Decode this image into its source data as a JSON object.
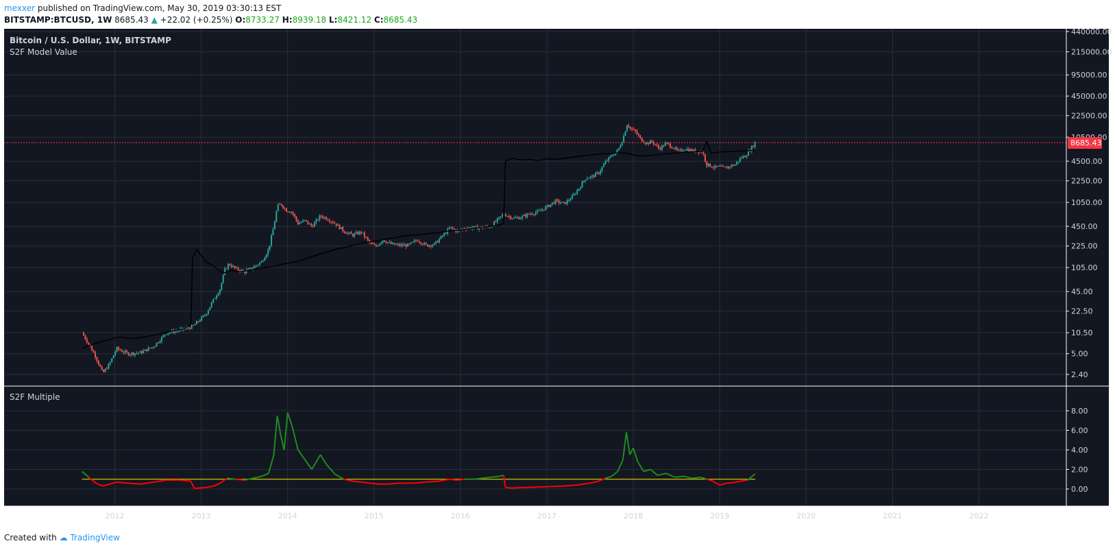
{
  "header": {
    "author": "mexxer",
    "published_text": "published on TradingView.com, May 30, 2019 03:30:13 EST",
    "symbol": "BITSTAMP:BTCUSD, 1W",
    "last": "8685.43",
    "change": "+22.02 (+0.25%)",
    "o_label": "O:",
    "o_value": "8733.27",
    "h_label": "H:",
    "h_value": "8939.18",
    "l_label": "L:",
    "l_value": "8421.12",
    "c_label": "C:",
    "c_value": "8685.43"
  },
  "footer": {
    "created_with": "Created with",
    "brand": "TradingView"
  },
  "colors": {
    "background": "#131722",
    "up": "#26a69a",
    "down": "#ef5350",
    "s2f_line": "#000000",
    "multiple_above": "#1e8c1e",
    "multiple_below": "#ff0000",
    "ref_line": "#d4c400",
    "price_line": "#f23645"
  },
  "chart_data": [
    {
      "type": "candlestick",
      "title": "Bitcoin / U.S. Dollar, 1W, BITSTAMP",
      "indicator_label": "S2F Model Value",
      "y_scale": "log",
      "y_ticks": [
        "440000.00",
        "215000.00",
        "95000.00",
        "45000.00",
        "22500.00",
        "10500.00",
        "4500.00",
        "2250.00",
        "1050.00",
        "450.00",
        "225.00",
        "105.00",
        "45.00",
        "22.50",
        "10.50",
        "5.00",
        "2.40"
      ],
      "x_ticks": [
        "2012",
        "2013",
        "2014",
        "2015",
        "2016",
        "2017",
        "2018",
        "2019",
        "2020",
        "2021",
        "2022"
      ],
      "current_price": "8685.43",
      "series": [
        {
          "name": "BTCUSD",
          "type": "candlestick",
          "x": [
            2011.62,
            2011.7,
            2011.78,
            2011.86,
            2011.94,
            2012.02,
            2012.15,
            2012.3,
            2012.45,
            2012.6,
            2012.75,
            2012.9,
            2013.05,
            2013.15,
            2013.22,
            2013.27,
            2013.32,
            2013.4,
            2013.5,
            2013.6,
            2013.7,
            2013.78,
            2013.84,
            2013.88,
            2013.92,
            2013.98,
            2014.05,
            2014.12,
            2014.2,
            2014.28,
            2014.38,
            2014.45,
            2014.55,
            2014.65,
            2014.75,
            2014.85,
            2014.95,
            2015.02,
            2015.1,
            2015.2,
            2015.3,
            2015.4,
            2015.5,
            2015.6,
            2015.7,
            2015.8,
            2015.88,
            2015.96,
            2016.05,
            2016.15,
            2016.25,
            2016.35,
            2016.45,
            2016.5,
            2016.55,
            2016.62,
            2016.7,
            2016.8,
            2016.9,
            2017.0,
            2017.1,
            2017.2,
            2017.3,
            2017.38,
            2017.45,
            2017.52,
            2017.6,
            2017.68,
            2017.75,
            2017.82,
            2017.88,
            2017.93,
            2017.97,
            2018.02,
            2018.08,
            2018.15,
            2018.22,
            2018.3,
            2018.38,
            2018.45,
            2018.52,
            2018.6,
            2018.68,
            2018.75,
            2018.8,
            2018.85,
            2018.9,
            2018.95,
            2019.0,
            2019.06,
            2019.12,
            2019.18,
            2019.24,
            2019.3,
            2019.36,
            2019.41
          ],
          "close": [
            10.5,
            7,
            4.5,
            2.5,
            3.5,
            6,
            5,
            5.2,
            6.5,
            10.5,
            11.5,
            13,
            20,
            35,
            50,
            95,
            120,
            100,
            90,
            105,
            130,
            200,
            450,
            900,
            1000,
            800,
            750,
            500,
            550,
            450,
            650,
            600,
            500,
            380,
            330,
            370,
            250,
            220,
            280,
            240,
            230,
            230,
            280,
            230,
            240,
            330,
            430,
            380,
            420,
            430,
            430,
            450,
            600,
            700,
            650,
            600,
            620,
            700,
            750,
            900,
            1100,
            1000,
            1300,
            1800,
            2500,
            2600,
            3000,
            4400,
            5500,
            6500,
            10000,
            17000,
            14000,
            13000,
            10000,
            8500,
            9000,
            7000,
            8500,
            7500,
            6300,
            7000,
            6500,
            6400,
            6300,
            4000,
            3800,
            3600,
            3700,
            3500,
            3800,
            4000,
            5000,
            5500,
            7000,
            8685.43
          ]
        },
        {
          "name": "S2F Model Value",
          "type": "line",
          "x": [
            2011.62,
            2011.75,
            2011.9,
            2012.05,
            2012.2,
            2012.35,
            2012.5,
            2012.65,
            2012.8,
            2012.88,
            2012.9,
            2012.95,
            2013.05,
            2013.15,
            2013.25,
            2013.35,
            2013.45,
            2013.55,
            2013.65,
            2013.75,
            2013.85,
            2013.95,
            2014.05,
            2014.15,
            2014.25,
            2014.35,
            2014.45,
            2014.55,
            2014.65,
            2014.75,
            2014.85,
            2014.95,
            2015.05,
            2015.15,
            2015.25,
            2015.35,
            2015.45,
            2015.55,
            2015.65,
            2015.75,
            2015.85,
            2015.95,
            2016.05,
            2016.15,
            2016.25,
            2016.35,
            2016.45,
            2016.5,
            2016.52,
            2016.6,
            2016.7,
            2016.8,
            2016.9,
            2017.0,
            2017.1,
            2017.2,
            2017.3,
            2017.4,
            2017.5,
            2017.6,
            2017.7,
            2017.8,
            2017.9,
            2018.0,
            2018.1,
            2018.2,
            2018.3,
            2018.4,
            2018.5,
            2018.6,
            2018.7,
            2018.8,
            2018.85,
            2018.9,
            2019.0,
            2019.1,
            2019.2,
            2019.3,
            2019.41
          ],
          "values": [
            6,
            7,
            8,
            9,
            8.5,
            9,
            10,
            11,
            12,
            14,
            150,
            200,
            130,
            110,
            85,
            95,
            90,
            95,
            100,
            105,
            110,
            120,
            125,
            135,
            150,
            165,
            180,
            200,
            210,
            230,
            250,
            260,
            270,
            290,
            300,
            320,
            330,
            340,
            350,
            360,
            380,
            390,
            400,
            420,
            430,
            450,
            470,
            500,
            4500,
            5000,
            4700,
            4800,
            4600,
            4900,
            4800,
            5000,
            5200,
            5400,
            5600,
            5800,
            5900,
            6000,
            6100,
            5600,
            5400,
            5500,
            5700,
            5900,
            6000,
            6200,
            6300,
            6300,
            9000,
            6000,
            6200,
            6300,
            6400,
            6500,
            6600
          ]
        }
      ]
    },
    {
      "type": "line",
      "title": "S2F Multiple",
      "y_ticks": [
        "8.00",
        "6.00",
        "4.00",
        "2.00",
        "0.00"
      ],
      "ylim": [
        -1.5,
        8.8
      ],
      "reference_value": 1.0,
      "x": [
        2011.62,
        2011.7,
        2011.78,
        2011.86,
        2011.94,
        2012.02,
        2012.15,
        2012.3,
        2012.45,
        2012.6,
        2012.75,
        2012.88,
        2012.92,
        2013.05,
        2013.15,
        2013.22,
        2013.3,
        2013.4,
        2013.5,
        2013.6,
        2013.7,
        2013.78,
        2013.84,
        2013.88,
        2013.92,
        2013.96,
        2014.0,
        2014.05,
        2014.12,
        2014.2,
        2014.28,
        2014.38,
        2014.45,
        2014.55,
        2014.65,
        2014.75,
        2014.85,
        2014.95,
        2015.05,
        2015.15,
        2015.3,
        2015.45,
        2015.6,
        2015.75,
        2015.88,
        2015.96,
        2016.05,
        2016.15,
        2016.25,
        2016.35,
        2016.45,
        2016.5,
        2016.52,
        2016.6,
        2016.75,
        2016.9,
        2017.05,
        2017.2,
        2017.35,
        2017.5,
        2017.6,
        2017.68,
        2017.75,
        2017.82,
        2017.88,
        2017.92,
        2017.96,
        2018.0,
        2018.05,
        2018.12,
        2018.2,
        2018.28,
        2018.38,
        2018.48,
        2018.58,
        2018.68,
        2018.78,
        2018.85,
        2018.92,
        2019.0,
        2019.08,
        2019.16,
        2019.24,
        2019.32,
        2019.41
      ],
      "values": [
        1.8,
        1.2,
        0.6,
        0.3,
        0.5,
        0.7,
        0.6,
        0.5,
        0.7,
        0.9,
        0.9,
        0.8,
        0.05,
        0.15,
        0.3,
        0.6,
        1.1,
        1.0,
        0.9,
        1.1,
        1.3,
        1.6,
        3.5,
        7.5,
        5.5,
        4.0,
        7.8,
        6.5,
        4.0,
        3.0,
        2.0,
        3.5,
        2.5,
        1.5,
        1.0,
        0.8,
        0.7,
        0.6,
        0.5,
        0.5,
        0.6,
        0.6,
        0.7,
        0.8,
        1.0,
        0.9,
        1.0,
        1.0,
        1.1,
        1.2,
        1.3,
        1.4,
        0.15,
        0.1,
        0.15,
        0.2,
        0.25,
        0.3,
        0.4,
        0.6,
        0.8,
        1.1,
        1.3,
        1.8,
        3.0,
        5.8,
        3.5,
        4.2,
        2.8,
        1.8,
        2.0,
        1.4,
        1.6,
        1.2,
        1.3,
        1.1,
        1.2,
        1.0,
        0.8,
        0.4,
        0.6,
        0.65,
        0.8,
        0.9,
        1.55
      ]
    }
  ]
}
